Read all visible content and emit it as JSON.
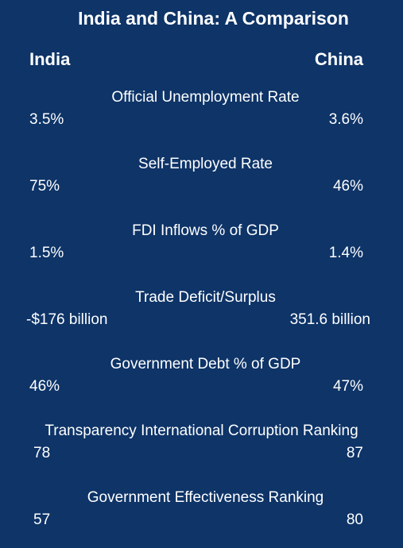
{
  "title": "India and China: A Comparison",
  "headers": {
    "left": "India",
    "right": "China"
  },
  "metrics": [
    {
      "label": "Official Unemployment Rate",
      "india": "3.5%",
      "china": "3.6%"
    },
    {
      "label": "Self-Employed Rate",
      "india": "75%",
      "china": "46%"
    },
    {
      "label": "FDI Inflows % of GDP",
      "india": "1.5%",
      "china": "1.4%"
    },
    {
      "label": "Trade Deficit/Surplus",
      "india": "-$176 billion",
      "china": "351.6 billion"
    },
    {
      "label": "Government Debt % of GDP",
      "india": "46%",
      "china": "47%"
    },
    {
      "label": "Transparency International Corruption Ranking",
      "india": "78",
      "china": "87"
    },
    {
      "label": "Government Effectiveness Ranking",
      "india": "57",
      "china": "80"
    }
  ]
}
